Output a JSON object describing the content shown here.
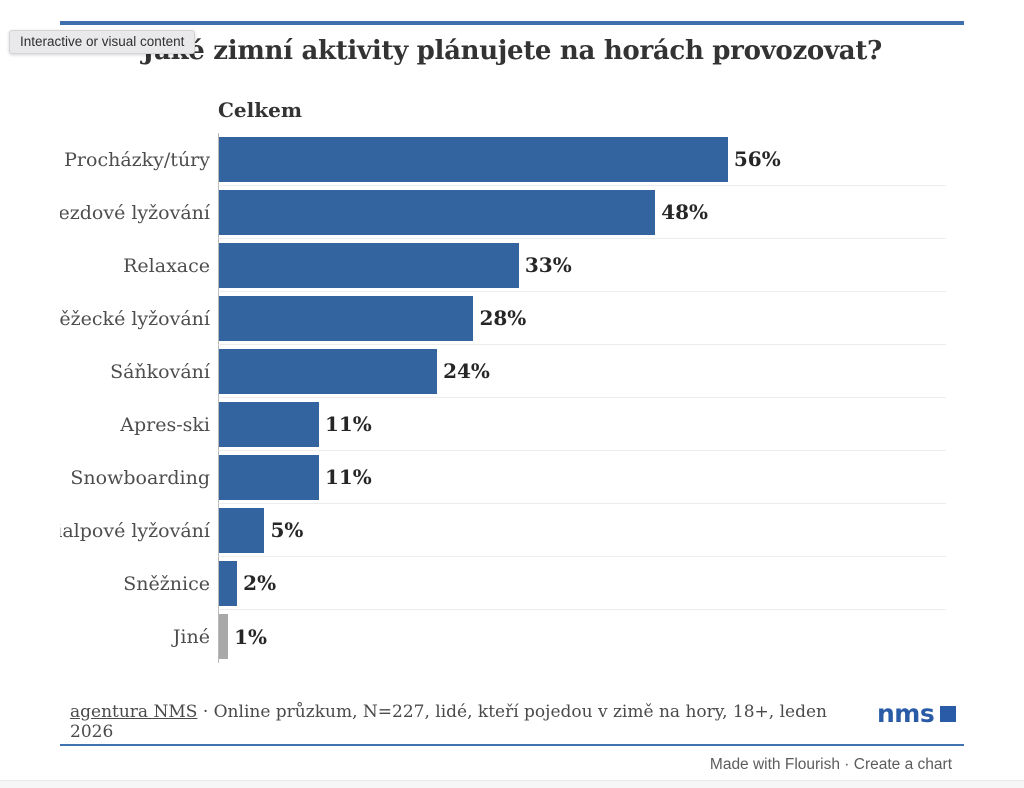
{
  "page": {
    "tooltip": "Interactive or visual content",
    "title": "Jaké zimní aktivity plánujete na horách provozovat?",
    "legend_label": "Celkem",
    "footer": {
      "source_link": "agentura NMS",
      "separator": "·",
      "source_text": "Online průzkum, N=227, lidé, kteří pojedou v zimě na hory, 18+, leden 2026",
      "logo_text": "nms"
    },
    "credit": {
      "made": "Made with Flourish",
      "separator": "·",
      "create": "Create a chart"
    }
  },
  "colors": {
    "bar_blue": "#3364a0",
    "bar_gray": "#a8a8a8",
    "rule_blue": "#3f6fae",
    "logo_blue": "#2a5ba6"
  },
  "chart_data": {
    "type": "bar",
    "orientation": "horizontal",
    "title": "Jaké zimní aktivity plánujete na horách provozovat?",
    "legend": [
      "Celkem"
    ],
    "legend_position": "top-left",
    "categories": [
      "Procházky/túry",
      "ezdové lyžování",
      "Relaxace",
      "ěžecké lyžování",
      "Sáňkování",
      "Apres-ski",
      "Snowboarding",
      "ialpové lyžování",
      "Sněžnice",
      "Jiné"
    ],
    "values": [
      56,
      48,
      33,
      28,
      24,
      11,
      11,
      5,
      2,
      1
    ],
    "value_suffix": "%",
    "xlim": [
      0,
      80
    ],
    "grid": "row-separators",
    "bar_colors": [
      "#3364a0",
      "#3364a0",
      "#3364a0",
      "#3364a0",
      "#3364a0",
      "#3364a0",
      "#3364a0",
      "#3364a0",
      "#3364a0",
      "#a8a8a8"
    ]
  }
}
